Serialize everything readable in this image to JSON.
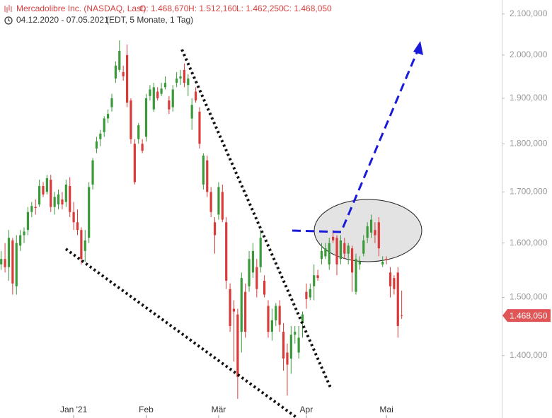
{
  "chart_data": {
    "type": "candlestick",
    "title": "Mercadolibre Inc. (NASDAQ, Last)",
    "ohlc_labels": [
      "O: 1.468,670",
      "H: 1.512,160",
      "L: 1.462,250",
      "C: 1.468,050"
    ],
    "period": "04.12.2020 - 07.05.2021",
    "subtitle": "(EDT, 5 Monate, 1 Tag)",
    "last_label": "1.468,050",
    "log_scale": true,
    "ylim": [
      1300,
      2135
    ],
    "yticks": [
      {
        "value": 1400,
        "label": "1.400,000"
      },
      {
        "value": 1500,
        "label": "1.500,000"
      },
      {
        "value": 1600,
        "label": "1.600,000"
      },
      {
        "value": 1700,
        "label": "1.700,000"
      },
      {
        "value": 1800,
        "label": "1.800,000"
      },
      {
        "value": 1900,
        "label": "1.900,000"
      },
      {
        "value": 2000,
        "label": "2.000,000"
      },
      {
        "value": 2100,
        "label": "2.100,000"
      }
    ],
    "up_color": "#3a9a3a",
    "down_color": "#d93a3a",
    "categories": [
      null,
      null,
      null,
      null,
      null,
      null,
      null,
      null,
      null,
      null,
      null,
      null,
      null,
      null,
      null,
      null,
      null,
      null,
      null,
      "Jan '21",
      null,
      null,
      null,
      null,
      null,
      null,
      null,
      null,
      null,
      null,
      null,
      null,
      null,
      null,
      null,
      null,
      null,
      null,
      "Feb",
      null,
      null,
      null,
      null,
      null,
      null,
      null,
      null,
      null,
      null,
      null,
      null,
      null,
      null,
      null,
      null,
      null,
      null,
      "Mär",
      null,
      null,
      null,
      null,
      null,
      null,
      null,
      null,
      null,
      null,
      null,
      null,
      null,
      null,
      null,
      null,
      null,
      null,
      null,
      null,
      null,
      null,
      "Apr",
      null,
      null,
      null,
      null,
      null,
      null,
      null,
      null,
      null,
      null,
      null,
      null,
      null,
      null,
      null,
      null,
      null,
      null,
      null,
      null,
      "Mai",
      null,
      null,
      null,
      null
    ],
    "open": [
      1560,
      1570,
      1555,
      1605,
      1520,
      1595,
      1615,
      1625,
      1660,
      1670,
      1675,
      1712,
      1700,
      1725,
      1670,
      1675,
      1685,
      1680,
      1712,
      1660,
      1640,
      1625,
      1585,
      1610,
      1715,
      1790,
      1810,
      1825,
      1855,
      1880,
      1945,
      1965,
      1960,
      2000,
      1895,
      1800,
      1810,
      1800,
      1815,
      1905,
      1875,
      1915,
      1910,
      1925,
      1895,
      1880,
      1935,
      1945,
      1965,
      1930,
      1855,
      1915,
      1870,
      1715,
      1765,
      1700,
      1640,
      1655,
      1700,
      1640,
      1515,
      1480,
      1470,
      1440,
      1510,
      1520,
      1545,
      1555,
      1555,
      1530,
      1485,
      1440,
      1460,
      1485,
      1440,
      1405,
      1395,
      1435,
      1405,
      1455,
      1510,
      1500,
      1520,
      1540,
      1570,
      1575,
      1560,
      1612,
      1610,
      1570,
      1600,
      1580,
      1590,
      1510,
      1560,
      1580,
      1610,
      1620,
      1625,
      1640,
      1560,
      1570,
      1545,
      1535,
      1545,
      1468.67
    ],
    "high": [
      1585,
      1600,
      1625,
      1610,
      1615,
      1625,
      1630,
      1670,
      1680,
      1685,
      1725,
      1720,
      1735,
      1735,
      1700,
      1705,
      1700,
      1725,
      1730,
      1680,
      1665,
      1630,
      1625,
      1720,
      1770,
      1815,
      1830,
      1860,
      1875,
      1910,
      1985,
      2035,
      1975,
      2025,
      1900,
      1810,
      1845,
      1810,
      1910,
      1930,
      1935,
      1925,
      1935,
      1950,
      1905,
      1930,
      1960,
      1965,
      1980,
      1955,
      1900,
      1925,
      1880,
      1780,
      1775,
      1710,
      1650,
      1720,
      1715,
      1650,
      1525,
      1495,
      1480,
      1545,
      1525,
      1585,
      1600,
      1570,
      1625,
      1540,
      1495,
      1480,
      1490,
      1495,
      1455,
      1420,
      1450,
      1450,
      1450,
      1475,
      1525,
      1525,
      1560,
      1550,
      1600,
      1600,
      1610,
      1625,
      1615,
      1615,
      1610,
      1600,
      1595,
      1580,
      1575,
      1615,
      1640,
      1655,
      1640,
      1650,
      1575,
      1575,
      1555,
      1540,
      1555,
      1512.16
    ],
    "low": [
      1550,
      1545,
      1530,
      1505,
      1505,
      1585,
      1600,
      1615,
      1650,
      1655,
      1670,
      1690,
      1695,
      1660,
      1655,
      1665,
      1665,
      1670,
      1650,
      1625,
      1615,
      1560,
      1565,
      1600,
      1705,
      1780,
      1795,
      1815,
      1845,
      1870,
      1935,
      1960,
      1940,
      1880,
      1800,
      1715,
      1800,
      1780,
      1805,
      1895,
      1870,
      1895,
      1905,
      1920,
      1865,
      1870,
      1925,
      1930,
      1925,
      1905,
      1830,
      1890,
      1790,
      1705,
      1690,
      1650,
      1580,
      1645,
      1640,
      1515,
      1440,
      1390,
      1330,
      1405,
      1430,
      1510,
      1535,
      1500,
      1545,
      1500,
      1430,
      1425,
      1450,
      1440,
      1375,
      1335,
      1370,
      1420,
      1395,
      1430,
      1480,
      1495,
      1495,
      1530,
      1560,
      1570,
      1550,
      1600,
      1540,
      1560,
      1570,
      1560,
      1510,
      1505,
      1550,
      1575,
      1600,
      1610,
      1600,
      1575,
      1555,
      1560,
      1500,
      1505,
      1430,
      1462.25
    ],
    "close": [
      1570,
      1555,
      1610,
      1525,
      1600,
      1615,
      1622,
      1660,
      1672,
      1668,
      1712,
      1695,
      1728,
      1670,
      1690,
      1695,
      1675,
      1715,
      1660,
      1640,
      1625,
      1570,
      1605,
      1710,
      1765,
      1805,
      1822,
      1855,
      1865,
      1900,
      1975,
      2010,
      1950,
      1890,
      1810,
      1720,
      1840,
      1785,
      1900,
      1920,
      1925,
      1900,
      1922,
      1935,
      1875,
      1920,
      1945,
      1950,
      1935,
      1945,
      1885,
      1895,
      1800,
      1775,
      1700,
      1660,
      1615,
      1710,
      1645,
      1530,
      1450,
      1475,
      1365,
      1535,
      1440,
      1570,
      1585,
      1515,
      1610,
      1505,
      1440,
      1460,
      1485,
      1452,
      1395,
      1385,
      1435,
      1440,
      1430,
      1470,
      1497,
      1515,
      1540,
      1535,
      1585,
      1590,
      1600,
      1605,
      1560,
      1605,
      1580,
      1595,
      1545,
      1570,
      1565,
      1605,
      1632,
      1645,
      1615,
      1590,
      1565,
      1568,
      1520,
      1515,
      1450,
      1468.05
    ]
  }
}
